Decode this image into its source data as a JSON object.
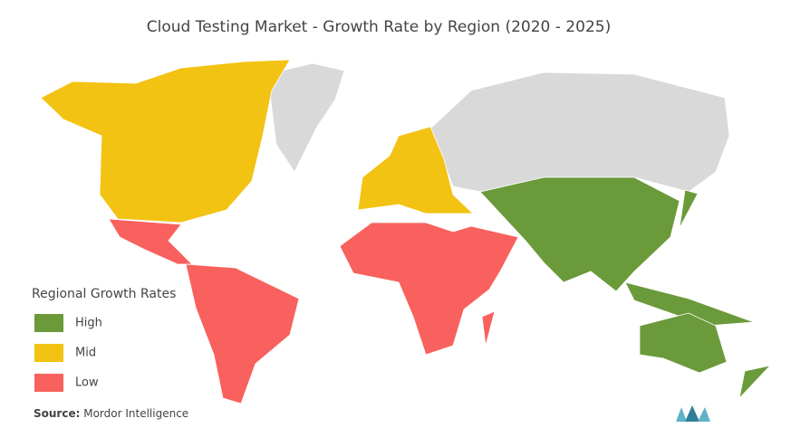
{
  "title": "Cloud Testing Market - Growth Rate by Region (2020 - 2025)",
  "legend": {
    "title": "Regional Growth Rates",
    "items": [
      {
        "label": "High",
        "color": "#6b9a3a"
      },
      {
        "label": "Mid",
        "color": "#f2c313"
      },
      {
        "label": "Low",
        "color": "#f8615d"
      }
    ]
  },
  "source": {
    "label": "Source:",
    "text": "Mordor Intelligence"
  }
}
